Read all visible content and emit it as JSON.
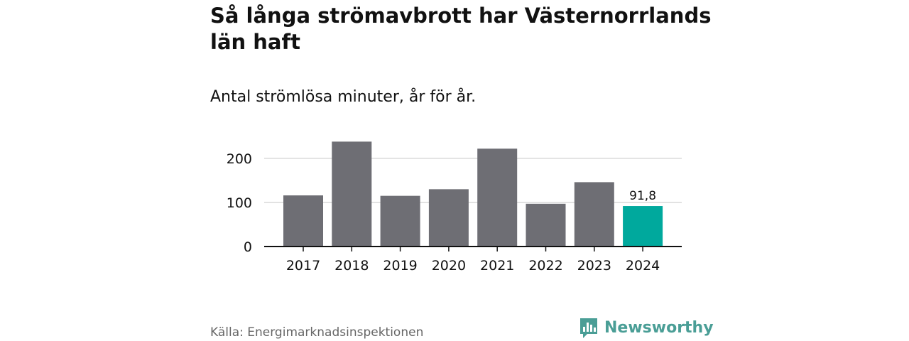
{
  "colors": {
    "bar": "#6e6e74",
    "highlight": "#00a99d",
    "grid": "#d9d9d9",
    "axis": "#111111",
    "brand": "#4a9e96"
  },
  "brand": {
    "name": "Newsworthy",
    "logo_icon": "bar-chart-speech-bubble-icon"
  },
  "source": "Källa: Energimarknadsinspektionen",
  "chart_data": {
    "type": "bar",
    "title": "Så långa strömavbrott har Västernorrlands län haft",
    "subtitle": "Antal strömlösa minuter, år för år.",
    "xlabel": "",
    "ylabel": "",
    "categories": [
      "2017",
      "2018",
      "2019",
      "2020",
      "2021",
      "2022",
      "2023",
      "2024"
    ],
    "values": [
      116,
      238,
      115,
      130,
      222,
      97,
      146,
      91.8
    ],
    "highlight_index": 7,
    "data_labels": [
      {
        "index": 7,
        "text": "91,8"
      }
    ],
    "yticks": [
      0,
      100,
      200
    ],
    "ytick_labels": [
      "0",
      "100",
      "200"
    ],
    "ylim": [
      0,
      240
    ],
    "grid": true
  }
}
